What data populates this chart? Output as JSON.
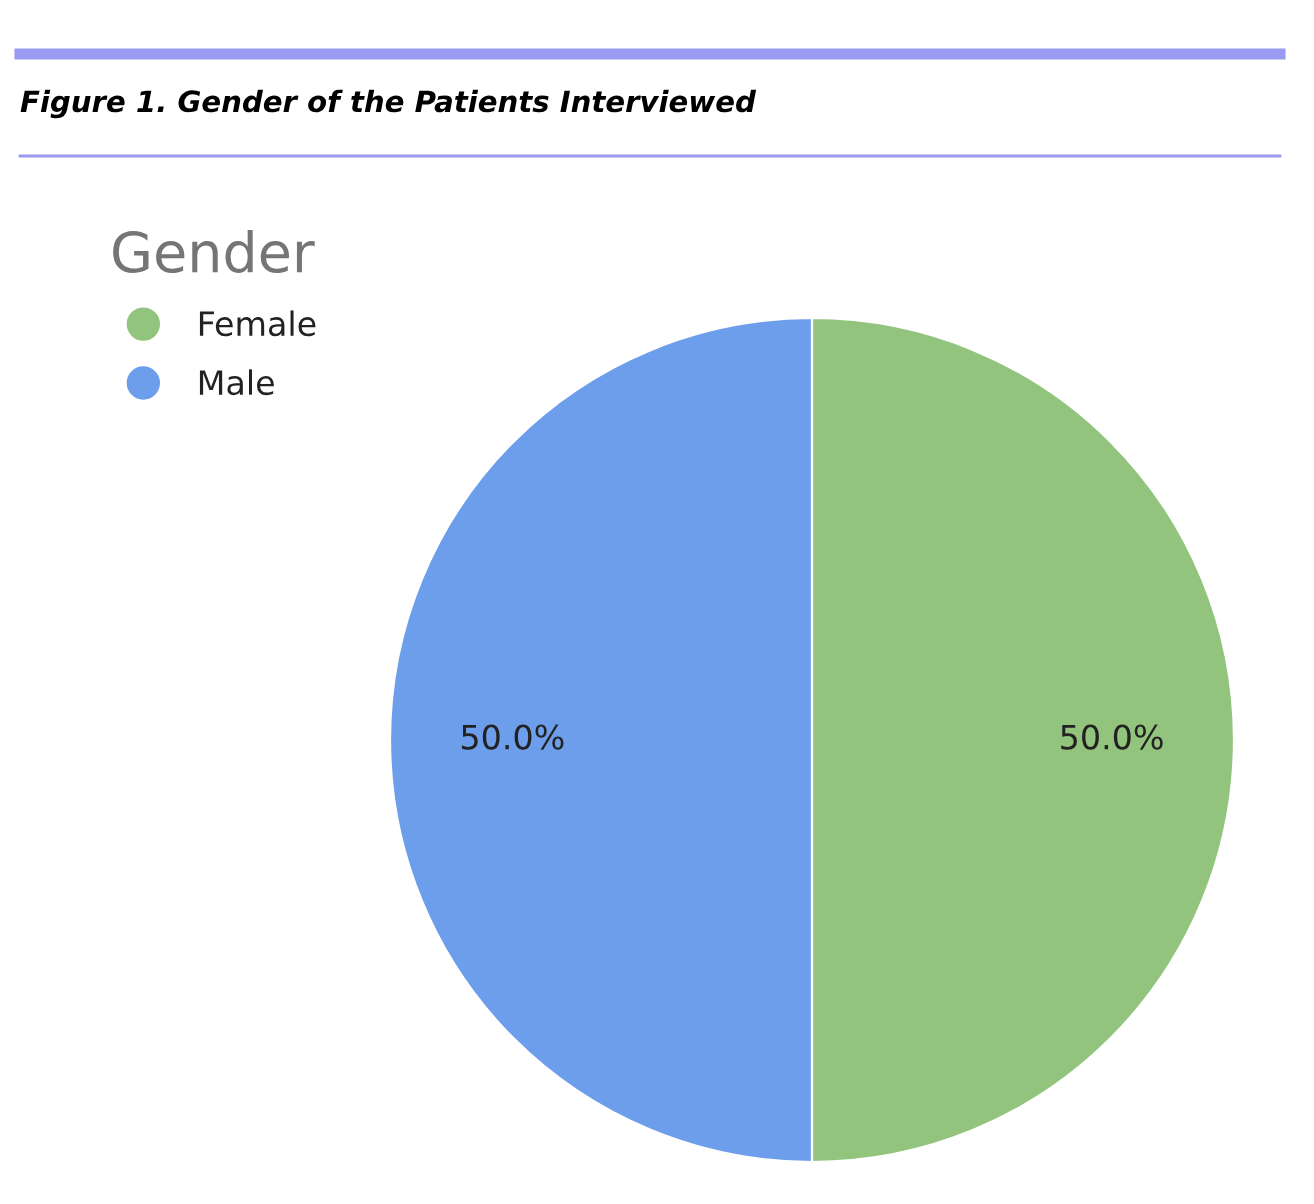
{
  "chart_data": {
    "type": "pie",
    "title": "Figure 1. Gender of the Patients Interviewed",
    "legend_title": "Gender",
    "categories": [
      "Female",
      "Male"
    ],
    "values": [
      50,
      50
    ],
    "colors": [
      "#93c47d",
      "#6d9eeb"
    ],
    "value_labels": [
      "50.0%",
      "50.0%"
    ],
    "legend": "top left"
  }
}
